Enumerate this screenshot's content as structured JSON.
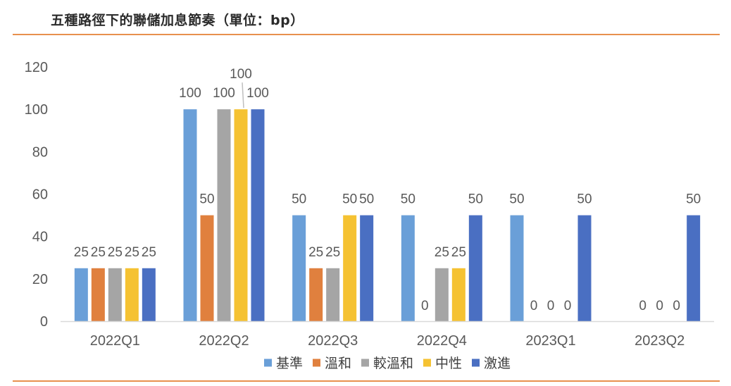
{
  "title": "五種路徑下的聯儲加息節奏（單位：bp）",
  "colors": {
    "rule": "#e8904e",
    "axis": "#d9d9d9",
    "text": "#595959"
  },
  "chart_data": {
    "type": "bar",
    "title": "五種路徑下的聯儲加息節奏（單位：bp）",
    "xlabel": "",
    "ylabel": "",
    "ylim": [
      0,
      120
    ],
    "yticks": [
      0,
      20,
      40,
      60,
      80,
      100,
      120
    ],
    "grid": false,
    "legend_position": "bottom",
    "categories": [
      "2022Q1",
      "2022Q2",
      "2022Q3",
      "2022Q4",
      "2023Q1",
      "2023Q2"
    ],
    "series": [
      {
        "name": "基準",
        "color": "#6a9fd8",
        "values": [
          25,
          100,
          50,
          50,
          50,
          0
        ]
      },
      {
        "name": "溫和",
        "color": "#e0803e",
        "values": [
          25,
          50,
          25,
          0,
          0,
          0
        ]
      },
      {
        "name": "較溫和",
        "color": "#a5a5a5",
        "values": [
          25,
          100,
          25,
          25,
          0,
          0
        ]
      },
      {
        "name": "中性",
        "color": "#f5c232",
        "values": [
          25,
          100,
          50,
          25,
          0,
          0
        ]
      },
      {
        "name": "激進",
        "color": "#4a6fc2",
        "values": [
          25,
          100,
          50,
          50,
          50,
          50
        ]
      }
    ],
    "data_labels": [
      [
        "25",
        "100",
        "50",
        "50",
        "50",
        ""
      ],
      [
        "25",
        "50",
        "25",
        "0",
        "0",
        "0"
      ],
      [
        "25",
        "100",
        "25",
        "25",
        "0",
        "0"
      ],
      [
        "25",
        "100",
        "50",
        "25",
        "0",
        "0"
      ],
      [
        "25",
        "100",
        "50",
        "50",
        "50",
        "50"
      ]
    ]
  }
}
